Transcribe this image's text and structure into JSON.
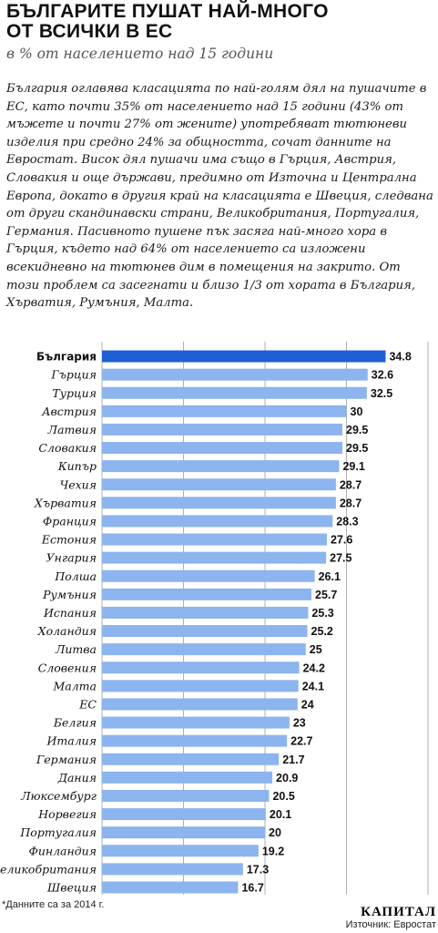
{
  "title_lines": [
    "БЪЛГАРИТЕ ПУШАТ НАЙ-МНОГО",
    "ОТ ВСИЧКИ В ЕС"
  ],
  "subtitle": "в % от населението над 15 години",
  "intro": "България оглавява класацията по най-голям дял на пушачите в ЕС, като почти 35% от населението над 15 години (43% от мъжете и почти 27% от жените) употребяват тютюневи изделия при средно 24% за общността, сочат данните на Евростат. Висок дял пушачи има също в Гърция, Австрия, Словакия и още държави, предимно от Източна и Централна Европа, докато в другия край на класацията е Швеция, следвана от други скандинавски страни, Великобритания, Португалия, Германия. Пасивното пушене пък засяга най-много хора в Гърция, където над 64% от населението са изложени всекидневно на тютюнев дим в помещения на закрито. От този проблем са засегнати и близо 1/3 от хората в България, Хърватия, Румъния, Малта.",
  "footnote": "*Данните са за 2014 г.",
  "brand": "КАПИТАЛ",
  "source": "Източник: Евростат",
  "colors": {
    "bar": "#8cb4ee",
    "highlight": "#1f5fd6",
    "grid": "#b0b0b0"
  },
  "chart_data": {
    "type": "bar",
    "orientation": "horizontal",
    "highlight_index": 0,
    "categories": [
      "България",
      "Гърция",
      "Турция",
      "Австрия",
      "Латвия",
      "Словакия",
      "Кипър",
      "Чехия",
      "Хърватия",
      "Франция",
      "Естония",
      "Унгария",
      "Полша",
      "Румъния",
      "Испания",
      "Холандия",
      "Литва",
      "Словения",
      "Малта",
      "ЕС",
      "Белгия",
      "Италия",
      "Германия",
      "Дания",
      "Люксембург",
      "Норвегия",
      "Португалия",
      "Финландия",
      "Великобритания",
      "Швеция"
    ],
    "values": [
      34.8,
      32.6,
      32.5,
      30,
      29.5,
      29.5,
      29.1,
      28.7,
      28.7,
      28.3,
      27.6,
      27.5,
      26.1,
      25.7,
      25.3,
      25.2,
      25,
      24.2,
      24.1,
      24,
      23,
      22.7,
      21.7,
      20.9,
      20.5,
      20.1,
      20,
      19.2,
      17.3,
      16.7
    ],
    "value_labels": [
      "34.8",
      "32.6",
      "32.5",
      "30",
      "29.5",
      "29.5",
      "29.1",
      "28.7",
      "28.7",
      "28.3",
      "27.6",
      "27.5",
      "26.1",
      "25.7",
      "25.3",
      "25.2",
      "25",
      "24.2",
      "24.1",
      "24",
      "23",
      "22.7",
      "21.7",
      "20.9",
      "20.5",
      "20.1",
      "20",
      "19.2",
      "17.3",
      "16.7"
    ],
    "xlim": [
      0,
      40
    ],
    "xticks": [
      0,
      10,
      20,
      30,
      40
    ],
    "grid": true
  }
}
